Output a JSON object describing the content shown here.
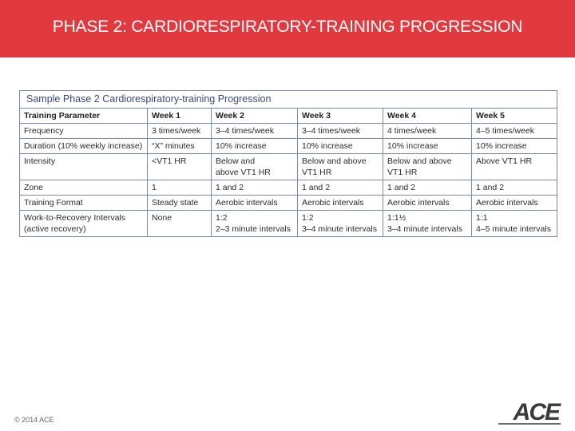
{
  "header": {
    "title": "PHASE 2: CARDIORESPIRATORY-TRAINING PROGRESSION"
  },
  "table": {
    "caption": "Sample Phase 2 Cardiorespiratory-training Progression",
    "columns": [
      "Training Parameter",
      "Week 1",
      "Week 2",
      "Week 3",
      "Week 4",
      "Week 5"
    ],
    "rows": [
      [
        "Frequency",
        "3 times/week",
        "3–4 times/week",
        "3–4 times/week",
        "4 times/week",
        "4–5 times/week"
      ],
      [
        "Duration (10% weekly increase)",
        "“X” minutes",
        "10% increase",
        "10% increase",
        "10% increase",
        "10% increase"
      ],
      [
        "Intensity",
        "<VT1 HR",
        "Below and\nabove VT1 HR",
        "Below and above\nVT1 HR",
        "Below and above\nVT1 HR",
        "Above VT1 HR"
      ],
      [
        "Zone",
        "1",
        "1 and 2",
        "1 and 2",
        "1 and 2",
        "1 and 2"
      ],
      [
        "Training Format",
        "Steady state",
        "Aerobic intervals",
        "Aerobic intervals",
        "Aerobic intervals",
        "Aerobic intervals"
      ],
      [
        "Work-to-Recovery Intervals\n(active recovery)",
        "None",
        "1:2\n2–3 minute intervals",
        "1:2\n3–4 minute intervals",
        "1:1½\n3–4 minute intervals",
        "1:1\n4–5 minute intervals"
      ]
    ]
  },
  "footer": {
    "copyright": "© 2014 ACE",
    "logo": "ACE"
  }
}
